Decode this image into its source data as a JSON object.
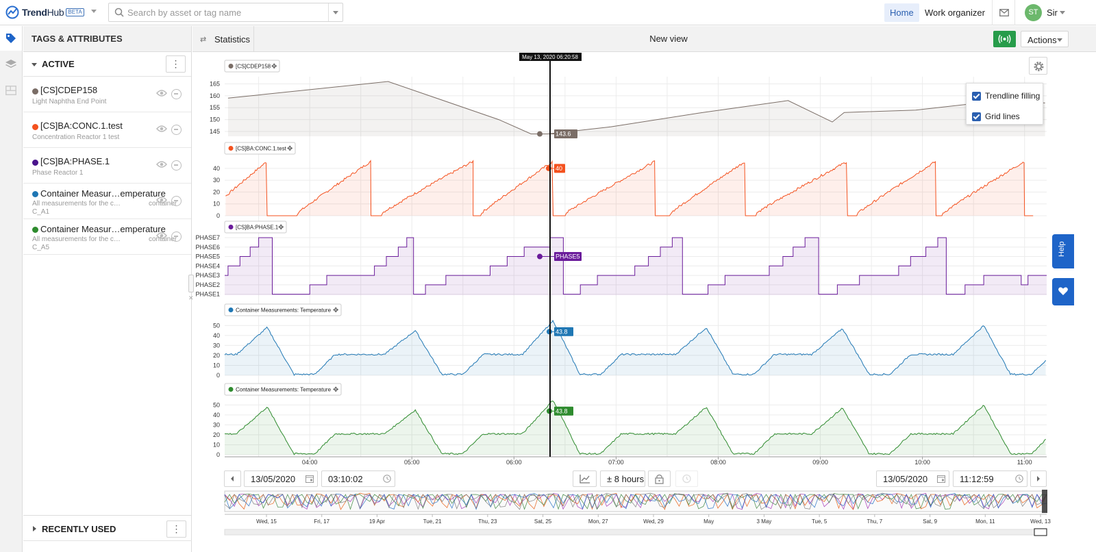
{
  "app": {
    "name_trend": "Trend",
    "name_hub": "Hub",
    "badge": "BETA"
  },
  "search": {
    "placeholder": "Search by asset or tag name"
  },
  "nav": {
    "home": "Home",
    "work_organizer": "Work organizer"
  },
  "user": {
    "initials": "ST",
    "name": "Sir"
  },
  "sidebar": {
    "header": "TAGS & ATTRIBUTES",
    "active_label": "ACTIVE",
    "recent_label": "RECENTLY USED",
    "tags": [
      {
        "name": "[CS]CDEP158",
        "desc": "Light Naphtha End Point",
        "color": "#7a6d66"
      },
      {
        "name": "[CS]BA:CONC.1.test",
        "desc": "Concentration Reactor 1 test",
        "color": "#f4511e"
      },
      {
        "name": "[CS]BA:PHASE.1",
        "desc": "Phase Reactor 1",
        "color": "#4a148c"
      },
      {
        "name": "Container Measur…emperature",
        "desc": "All measurements for the c…",
        "desc_right": "container",
        "desc2": "C_A1",
        "color": "#1f77b4"
      },
      {
        "name": "Container Measur…emperature",
        "desc": "All measurements for the c…",
        "desc_right": "container",
        "desc2": "C_A5",
        "color": "#2e8b2e"
      }
    ]
  },
  "toolbar": {
    "statistics": "Statistics",
    "view_title": "New view",
    "actions": "Actions"
  },
  "settings": {
    "trendline_filling": "Trendline filling",
    "grid_lines": "Grid lines"
  },
  "help": {
    "label": "Help"
  },
  "cursor": {
    "timestamp": "May 13, 2020 06:20:58"
  },
  "range": {
    "start_date": "13/05/2020",
    "start_time": "03:10:02",
    "span": "± 8 hours",
    "end_date": "13/05/2020",
    "end_time": "11:12:59"
  },
  "chart_data": [
    {
      "type": "area",
      "series": [
        {
          "name": "[CS]CDEP158",
          "color": "#7a6d66",
          "x": [
            "03:12",
            "04:46",
            "05:51",
            "06:10",
            "06:20",
            "06:57",
            "07:51",
            "08:41",
            "09:07",
            "09:14",
            "09:56",
            "10:46",
            "11:12"
          ],
          "values": [
            159,
            166,
            150,
            144,
            144,
            147,
            153,
            158,
            149,
            153,
            154,
            158,
            157
          ]
        }
      ],
      "yticks": [
        145,
        150,
        155,
        160,
        165
      ],
      "ylim": [
        143,
        168
      ],
      "cursor_value": "143.6"
    },
    {
      "type": "area",
      "series": [
        {
          "name": "[CS]BA:CONC.1.test",
          "color": "#f4511e"
        }
      ],
      "yticks": [
        0,
        10,
        20,
        30,
        40
      ],
      "ylim": [
        0,
        48
      ],
      "cursor_value": "40"
    },
    {
      "type": "area",
      "series": [
        {
          "name": "[CS]BA:PHASE.1",
          "color": "#6a1b9a"
        }
      ],
      "yticks": [
        "PHASE1",
        "PHASE2",
        "PHASE3",
        "PHASE4",
        "PHASE5",
        "PHASE6",
        "PHASE7"
      ],
      "cursor_value": "PHASE5"
    },
    {
      "type": "area",
      "series": [
        {
          "name": "Container Measurements: Temperature",
          "color": "#1f77b4"
        }
      ],
      "yticks": [
        0,
        10,
        20,
        30,
        40,
        50
      ],
      "ylim": [
        0,
        55
      ],
      "cursor_value": "43.8"
    },
    {
      "type": "area",
      "series": [
        {
          "name": "Container Measurements: Temperature",
          "color": "#2e8b2e"
        }
      ],
      "yticks": [
        0,
        10,
        20,
        30,
        40,
        50
      ],
      "ylim": [
        0,
        55
      ],
      "cursor_value": "43.8"
    }
  ],
  "x_axis": {
    "ticks": [
      "04:00",
      "05:00",
      "06:00",
      "07:00",
      "08:00",
      "09:00",
      "10:00",
      "11:00"
    ]
  },
  "navigator": {
    "ticks": [
      "Wed, 15",
      "Fri, 17",
      "19 Apr",
      "Tue, 21",
      "Thu, 23",
      "Sat, 25",
      "Mon, 27",
      "Wed, 29",
      "May",
      "3 May",
      "Tue, 5",
      "Thu, 7",
      "Sat, 9",
      "Mon, 11",
      "Wed, 13"
    ]
  }
}
